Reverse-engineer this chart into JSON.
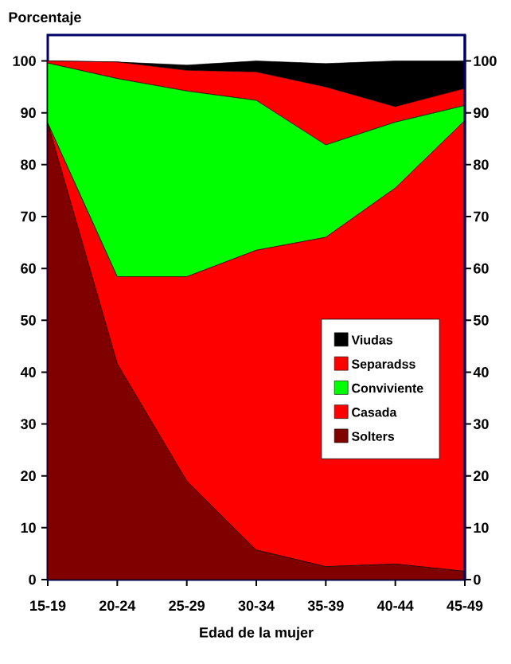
{
  "chart_data": {
    "type": "area",
    "stacked": true,
    "xlabel": "Edad de la mujer",
    "ylabel": "Porcentaje",
    "categories": [
      "15-19",
      "20-24",
      "25-29",
      "30-34",
      "35-39",
      "40-44",
      "45-49"
    ],
    "series": [
      {
        "name": "Solters",
        "color": "#800000",
        "values": [
          88,
          41.6,
          19,
          5.7,
          2.5,
          3,
          1.6
        ]
      },
      {
        "name": "Casada",
        "color": "#ff0000",
        "values": [
          0,
          16.8,
          39.4,
          57.8,
          63.5,
          72.5,
          86.9
        ]
      },
      {
        "name": "Conviviente",
        "color": "#00ff00",
        "values": [
          11.6,
          38.2,
          35.8,
          28.9,
          17.8,
          12.7,
          2.9
        ]
      },
      {
        "name": "Separadss",
        "color": "#ff0000",
        "values": [
          0.4,
          3.2,
          4.0,
          5.5,
          11.2,
          3.0,
          3.3
        ]
      },
      {
        "name": "Viudas",
        "color": "#000000",
        "values": [
          0,
          0,
          1.0,
          2.1,
          4.5,
          8.8,
          5.3
        ]
      }
    ],
    "ylim": [
      0,
      105
    ],
    "yticks": [
      0,
      10,
      20,
      30,
      40,
      50,
      60,
      70,
      80,
      90,
      100
    ],
    "y2lim": [
      0,
      105
    ],
    "y2ticks": [
      0,
      10,
      20,
      30,
      40,
      50,
      60,
      70,
      80,
      90,
      100
    ],
    "legend": "right",
    "grid": false
  }
}
